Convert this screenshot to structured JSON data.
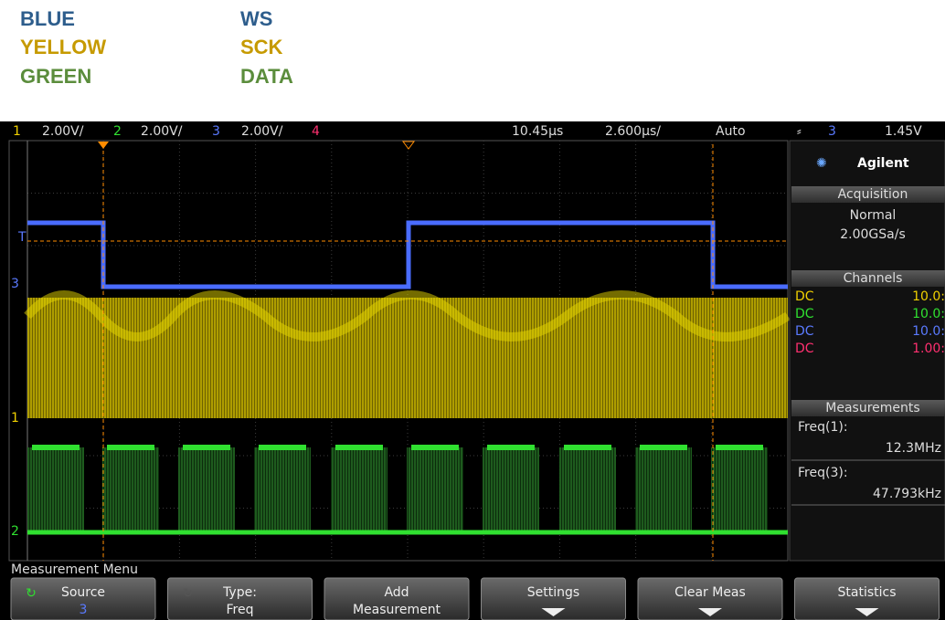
{
  "legend": [
    {
      "color_name": "BLUE",
      "signal": "WS"
    },
    {
      "color_name": "YELLOW",
      "signal": "SCK"
    },
    {
      "color_name": "GREEN",
      "signal": "DATA"
    }
  ],
  "status_bar": {
    "ch1": "1",
    "ch1_scale": "2.00V/",
    "ch2": "2",
    "ch2_scale": "2.00V/",
    "ch3": "3",
    "ch3_scale": "2.00V/",
    "ch4": "4",
    "time_position": "10.45µs",
    "time_scale": "2.600µs/",
    "trigger_mode": "Auto",
    "trigger_source": "3",
    "trigger_level": "1.45V"
  },
  "markers": {
    "trigger": "T",
    "ch3": "3",
    "ch1": "1",
    "ch2": "2"
  },
  "side_panel": {
    "brand": "Agilent",
    "acquisition": {
      "title": "Acquisition",
      "mode": "Normal",
      "rate": "2.00GSa/s"
    },
    "channels": {
      "title": "Channels",
      "rows": [
        [
          "DC",
          "10.0:"
        ],
        [
          "DC",
          "10.0:"
        ],
        [
          "DC",
          "10.0:"
        ],
        [
          "DC",
          "1.00:"
        ]
      ]
    },
    "measurements": {
      "title": "Measurements",
      "items": [
        {
          "label": "Freq(1):",
          "value": "12.3MHz"
        },
        {
          "label": "Freq(3):",
          "value": "47.793kHz"
        }
      ]
    }
  },
  "softkeys": {
    "menu_title": "Measurement Menu",
    "keys": [
      {
        "label": "Source",
        "value": "3"
      },
      {
        "label": "Type:",
        "value": "Freq"
      },
      {
        "label": "Add",
        "value": "Measurement"
      },
      {
        "label": "Settings"
      },
      {
        "label": "Clear Meas"
      },
      {
        "label": "Statistics"
      }
    ]
  }
}
